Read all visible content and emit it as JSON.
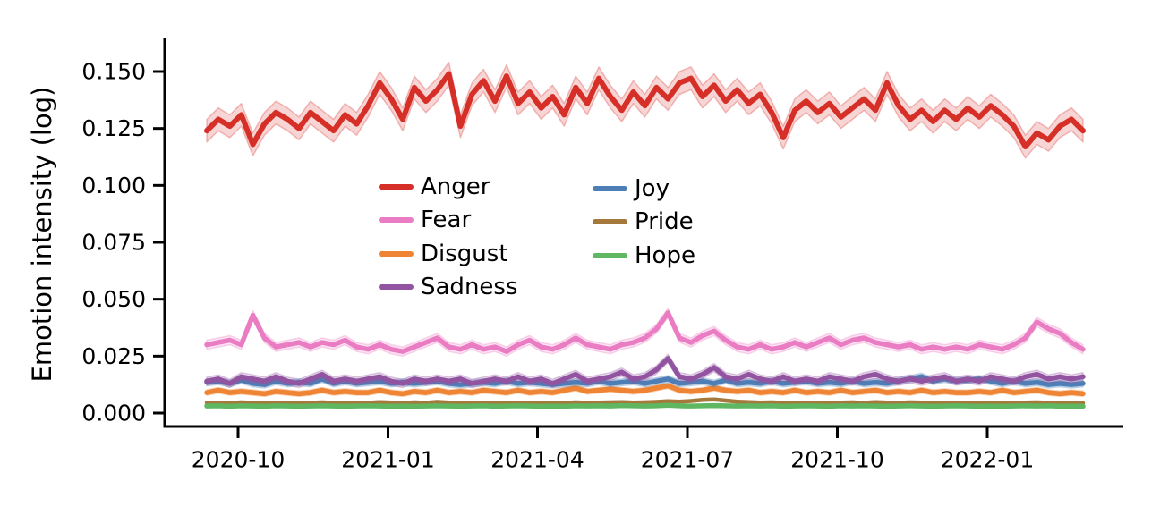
{
  "figure": {
    "background": "#ffffff",
    "axis_color": "#000000",
    "text_color": "#000000"
  },
  "chart_data": {
    "type": "line",
    "title": "",
    "xlabel": "",
    "ylabel": "Emotion intensity (log)",
    "ylim": [
      0.0,
      0.165
    ],
    "grid": false,
    "legend_position": "upper center, inside axes, two columns, no frame",
    "y_ticks": [
      {
        "value": 0.0,
        "label": "0.000"
      },
      {
        "value": 0.025,
        "label": "0.025"
      },
      {
        "value": 0.05,
        "label": "0.050"
      },
      {
        "value": 0.075,
        "label": "0.075"
      },
      {
        "value": 0.1,
        "label": "0.100"
      },
      {
        "value": 0.125,
        "label": "0.125"
      },
      {
        "value": 0.15,
        "label": "0.150"
      }
    ],
    "x_ticks": [
      {
        "label": "2020-10"
      },
      {
        "label": "2021-01"
      },
      {
        "label": "2021-04"
      },
      {
        "label": "2021-07"
      },
      {
        "label": "2021-10"
      },
      {
        "label": "2022-01"
      }
    ],
    "series": [
      {
        "name": "Anger",
        "color": "#d62f28",
        "band": 0.005,
        "values": [
          0.124,
          0.129,
          0.126,
          0.131,
          0.118,
          0.127,
          0.132,
          0.129,
          0.125,
          0.132,
          0.128,
          0.124,
          0.131,
          0.127,
          0.135,
          0.145,
          0.138,
          0.129,
          0.143,
          0.137,
          0.142,
          0.149,
          0.126,
          0.14,
          0.146,
          0.137,
          0.148,
          0.136,
          0.141,
          0.134,
          0.139,
          0.131,
          0.143,
          0.136,
          0.147,
          0.139,
          0.133,
          0.141,
          0.135,
          0.143,
          0.138,
          0.145,
          0.147,
          0.139,
          0.144,
          0.137,
          0.142,
          0.136,
          0.14,
          0.132,
          0.121,
          0.133,
          0.137,
          0.132,
          0.136,
          0.13,
          0.134,
          0.138,
          0.133,
          0.145,
          0.135,
          0.129,
          0.133,
          0.128,
          0.133,
          0.129,
          0.134,
          0.13,
          0.135,
          0.131,
          0.126,
          0.117,
          0.123,
          0.12,
          0.126,
          0.129,
          0.124
        ]
      },
      {
        "name": "Fear",
        "color": "#ea7cc3",
        "band": 0.002,
        "values": [
          0.03,
          0.031,
          0.032,
          0.03,
          0.043,
          0.033,
          0.029,
          0.03,
          0.031,
          0.029,
          0.031,
          0.03,
          0.032,
          0.029,
          0.028,
          0.03,
          0.028,
          0.027,
          0.029,
          0.031,
          0.033,
          0.029,
          0.028,
          0.03,
          0.028,
          0.029,
          0.027,
          0.03,
          0.032,
          0.029,
          0.028,
          0.03,
          0.033,
          0.03,
          0.029,
          0.028,
          0.03,
          0.031,
          0.033,
          0.037,
          0.044,
          0.033,
          0.031,
          0.034,
          0.036,
          0.032,
          0.029,
          0.028,
          0.03,
          0.028,
          0.029,
          0.031,
          0.029,
          0.031,
          0.033,
          0.03,
          0.032,
          0.033,
          0.031,
          0.03,
          0.029,
          0.03,
          0.028,
          0.029,
          0.028,
          0.029,
          0.028,
          0.03,
          0.029,
          0.028,
          0.03,
          0.033,
          0.04,
          0.037,
          0.035,
          0.031,
          0.028
        ]
      },
      {
        "name": "Disgust",
        "color": "#ee8434",
        "band": 0.0012,
        "values": [
          0.009,
          0.01,
          0.009,
          0.0095,
          0.009,
          0.0085,
          0.0095,
          0.009,
          0.0085,
          0.009,
          0.01,
          0.009,
          0.0095,
          0.009,
          0.009,
          0.01,
          0.009,
          0.0085,
          0.0095,
          0.009,
          0.01,
          0.009,
          0.0095,
          0.009,
          0.01,
          0.0095,
          0.009,
          0.01,
          0.009,
          0.0095,
          0.009,
          0.01,
          0.011,
          0.0095,
          0.01,
          0.0105,
          0.01,
          0.0095,
          0.01,
          0.011,
          0.012,
          0.01,
          0.0095,
          0.01,
          0.011,
          0.01,
          0.0095,
          0.01,
          0.009,
          0.0095,
          0.009,
          0.01,
          0.009,
          0.0095,
          0.009,
          0.01,
          0.009,
          0.0095,
          0.01,
          0.009,
          0.0095,
          0.009,
          0.01,
          0.009,
          0.0095,
          0.009,
          0.009,
          0.0095,
          0.009,
          0.01,
          0.009,
          0.0095,
          0.01,
          0.009,
          0.0085,
          0.009,
          0.0085
        ]
      },
      {
        "name": "Sadness",
        "color": "#9253a1",
        "band": 0.0018,
        "values": [
          0.014,
          0.015,
          0.013,
          0.016,
          0.015,
          0.014,
          0.016,
          0.014,
          0.013,
          0.015,
          0.017,
          0.014,
          0.015,
          0.014,
          0.015,
          0.016,
          0.014,
          0.013,
          0.015,
          0.014,
          0.015,
          0.014,
          0.015,
          0.013,
          0.014,
          0.015,
          0.014,
          0.016,
          0.014,
          0.015,
          0.013,
          0.015,
          0.017,
          0.014,
          0.015,
          0.016,
          0.018,
          0.015,
          0.016,
          0.019,
          0.024,
          0.016,
          0.015,
          0.017,
          0.02,
          0.016,
          0.015,
          0.017,
          0.015,
          0.014,
          0.016,
          0.014,
          0.015,
          0.014,
          0.016,
          0.015,
          0.014,
          0.016,
          0.017,
          0.015,
          0.014,
          0.015,
          0.014,
          0.015,
          0.016,
          0.014,
          0.015,
          0.014,
          0.016,
          0.015,
          0.014,
          0.016,
          0.017,
          0.015,
          0.016,
          0.015,
          0.016
        ]
      },
      {
        "name": "Joy",
        "color": "#4d7eb5",
        "band": 0.0015,
        "values": [
          0.0135,
          0.014,
          0.013,
          0.0145,
          0.013,
          0.0125,
          0.014,
          0.013,
          0.0135,
          0.013,
          0.015,
          0.013,
          0.014,
          0.013,
          0.0135,
          0.014,
          0.013,
          0.0135,
          0.013,
          0.0135,
          0.014,
          0.013,
          0.0125,
          0.013,
          0.0135,
          0.013,
          0.014,
          0.013,
          0.0135,
          0.013,
          0.0125,
          0.013,
          0.0135,
          0.013,
          0.014,
          0.013,
          0.0135,
          0.014,
          0.013,
          0.014,
          0.015,
          0.013,
          0.0135,
          0.014,
          0.013,
          0.0145,
          0.013,
          0.0135,
          0.013,
          0.014,
          0.013,
          0.0135,
          0.014,
          0.013,
          0.0135,
          0.013,
          0.014,
          0.013,
          0.0135,
          0.013,
          0.014,
          0.015,
          0.016,
          0.014,
          0.015,
          0.014,
          0.0145,
          0.015,
          0.014,
          0.013,
          0.014,
          0.013,
          0.0135,
          0.0125,
          0.013,
          0.0125,
          0.013
        ]
      },
      {
        "name": "Pride",
        "color": "#a4793b",
        "band": 0.0006,
        "values": [
          0.0045,
          0.0046,
          0.0044,
          0.0047,
          0.0045,
          0.0044,
          0.0046,
          0.0045,
          0.0044,
          0.0045,
          0.0047,
          0.0045,
          0.0046,
          0.0044,
          0.0045,
          0.0048,
          0.0046,
          0.0044,
          0.0047,
          0.0045,
          0.0049,
          0.0046,
          0.0045,
          0.0044,
          0.0046,
          0.0045,
          0.0044,
          0.0046,
          0.0045,
          0.0046,
          0.0044,
          0.0045,
          0.0047,
          0.0045,
          0.0046,
          0.0047,
          0.0048,
          0.0046,
          0.0047,
          0.0049,
          0.0052,
          0.005,
          0.0053,
          0.0058,
          0.006,
          0.0055,
          0.005,
          0.0048,
          0.0046,
          0.0047,
          0.0045,
          0.0046,
          0.0045,
          0.0046,
          0.0044,
          0.0046,
          0.0047,
          0.0045,
          0.0048,
          0.0046,
          0.0045,
          0.0047,
          0.0046,
          0.0045,
          0.0046,
          0.0044,
          0.0045,
          0.0046,
          0.0045,
          0.0046,
          0.0044,
          0.0046,
          0.0047,
          0.0045,
          0.0044,
          0.0045,
          0.0044
        ]
      },
      {
        "name": "Hope",
        "color": "#5fb761",
        "band": 0.0005,
        "values": [
          0.0031,
          0.0032,
          0.003,
          0.0032,
          0.0031,
          0.003,
          0.0032,
          0.0031,
          0.003,
          0.0031,
          0.0032,
          0.0031,
          0.003,
          0.0031,
          0.0032,
          0.0031,
          0.003,
          0.0031,
          0.003,
          0.0031,
          0.0032,
          0.0031,
          0.003,
          0.0031,
          0.0032,
          0.003,
          0.0031,
          0.0032,
          0.0031,
          0.003,
          0.0031,
          0.003,
          0.0032,
          0.0031,
          0.0032,
          0.0031,
          0.0033,
          0.0032,
          0.0031,
          0.0032,
          0.0034,
          0.0032,
          0.0031,
          0.0032,
          0.0033,
          0.0032,
          0.0031,
          0.0032,
          0.0031,
          0.0032,
          0.003,
          0.0031,
          0.0032,
          0.0031,
          0.003,
          0.0032,
          0.0031,
          0.0032,
          0.0031,
          0.003,
          0.0031,
          0.0032,
          0.0031,
          0.003,
          0.0031,
          0.0032,
          0.0031,
          0.003,
          0.0031,
          0.003,
          0.0031,
          0.0032,
          0.0031,
          0.0032,
          0.003,
          0.0031,
          0.003
        ]
      }
    ]
  }
}
